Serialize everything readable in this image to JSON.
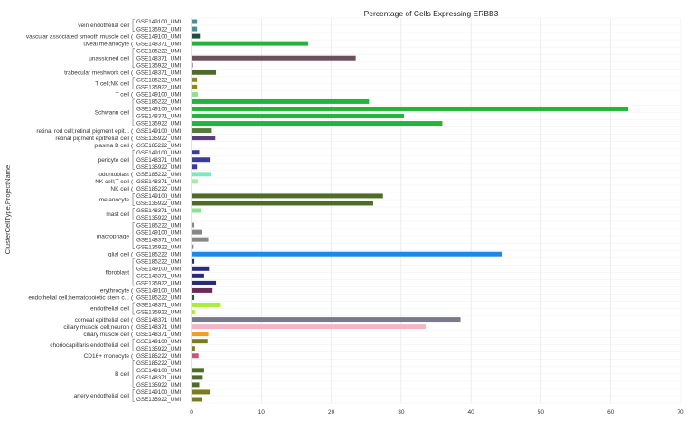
{
  "chart_data": {
    "type": "bar",
    "orientation": "horizontal",
    "title": "Percentage of Cells Expressing ERBB3",
    "ylabel": "ClusterCellType,ProjectName",
    "xlabel": "",
    "xlim": [
      0,
      70
    ],
    "xticks": [
      0,
      10,
      20,
      30,
      40,
      50,
      60,
      70
    ],
    "grid": true,
    "groups": [
      {
        "label": "vein endothelial cell",
        "rows": [
          {
            "project": "GSE149100_UMI",
            "value": 0.8,
            "color": "#4a8f8f"
          },
          {
            "project": "GSE135922_UMI",
            "value": 0.8,
            "color": "#4a8f8f"
          }
        ]
      },
      {
        "label": "vascular associated smooth muscle cell",
        "rows": [
          {
            "project": "GSE149100_UMI",
            "value": 1.2,
            "color": "#1f4e3d"
          }
        ]
      },
      {
        "label": "uveal melanocyte",
        "rows": [
          {
            "project": "GSE148371_UMI",
            "value": 16.7,
            "color": "#22b53a"
          }
        ]
      },
      {
        "label": "unassigned cell",
        "rows": [
          {
            "project": "GSE185222_UMI",
            "value": 0.0,
            "color": "#6b4f5e"
          },
          {
            "project": "GSE148371_UMI",
            "value": 23.5,
            "color": "#6b4f5e"
          },
          {
            "project": "GSE135922_UMI",
            "value": 0.2,
            "color": "#6b4f5e"
          }
        ]
      },
      {
        "label": "trabecular meshwork cell",
        "rows": [
          {
            "project": "GSE148371_UMI",
            "value": 3.5,
            "color": "#4f6b2a"
          }
        ]
      },
      {
        "label": "T cell;NK cell",
        "rows": [
          {
            "project": "GSE185222_UMI",
            "value": 0.8,
            "color": "#8a8a1e"
          },
          {
            "project": "GSE135922_UMI",
            "value": 0.8,
            "color": "#8a8a1e"
          }
        ]
      },
      {
        "label": "T cell",
        "rows": [
          {
            "project": "GSE149100_UMI",
            "value": 0.9,
            "color": "#8fe08f"
          }
        ]
      },
      {
        "label": "Schwann cell",
        "rows": [
          {
            "project": "GSE185222_UMI",
            "value": 25.4,
            "color": "#22b53a"
          },
          {
            "project": "GSE149100_UMI",
            "value": 62.5,
            "color": "#22b53a"
          },
          {
            "project": "GSE148371_UMI",
            "value": 30.4,
            "color": "#22b53a"
          },
          {
            "project": "GSE135922_UMI",
            "value": 35.9,
            "color": "#22b53a"
          }
        ]
      },
      {
        "label": "retinal rod cell;retinal pigment epit...",
        "rows": [
          {
            "project": "GSE149100_UMI",
            "value": 2.9,
            "color": "#557a3a"
          }
        ]
      },
      {
        "label": "retinal pigment epithelial cell",
        "rows": [
          {
            "project": "GSE135922_UMI",
            "value": 3.4,
            "color": "#5a3f7a"
          }
        ]
      },
      {
        "label": "plasma B cell",
        "rows": [
          {
            "project": "GSE185222_UMI",
            "value": 0.0,
            "color": "#4a4aa0"
          }
        ]
      },
      {
        "label": "pericyte cell",
        "rows": [
          {
            "project": "GSE149100_UMI",
            "value": 1.1,
            "color": "#3a3aa0"
          },
          {
            "project": "GSE148371_UMI",
            "value": 2.6,
            "color": "#3a3aa0"
          },
          {
            "project": "GSE135922_UMI",
            "value": 0.8,
            "color": "#3a3aa0"
          }
        ]
      },
      {
        "label": "odontoblast",
        "rows": [
          {
            "project": "GSE185222_UMI",
            "value": 2.8,
            "color": "#7fe8c0"
          }
        ]
      },
      {
        "label": "NK cell;T cell",
        "rows": [
          {
            "project": "GSE148371_UMI",
            "value": 0.9,
            "color": "#a8e8a8"
          }
        ]
      },
      {
        "label": "NK cell",
        "rows": [
          {
            "project": "GSE185222_UMI",
            "value": 0.0,
            "color": "#557a3a"
          }
        ]
      },
      {
        "label": "melanocyte",
        "rows": [
          {
            "project": "GSE149100_UMI",
            "value": 27.4,
            "color": "#4f6b2a"
          },
          {
            "project": "GSE135922_UMI",
            "value": 26.0,
            "color": "#4f6b2a"
          }
        ]
      },
      {
        "label": "mast cell",
        "rows": [
          {
            "project": "GSE148371_UMI",
            "value": 1.3,
            "color": "#8fe08f"
          },
          {
            "project": "GSE135922_UMI",
            "value": 0.0,
            "color": "#8fe08f"
          }
        ]
      },
      {
        "label": "macrophage",
        "rows": [
          {
            "project": "GSE185222_UMI",
            "value": 0.4,
            "color": "#888888"
          },
          {
            "project": "GSE149100_UMI",
            "value": 1.5,
            "color": "#888888"
          },
          {
            "project": "GSE148371_UMI",
            "value": 2.4,
            "color": "#888888"
          },
          {
            "project": "GSE135922_UMI",
            "value": 0.3,
            "color": "#888888"
          }
        ]
      },
      {
        "label": "glial cell",
        "rows": [
          {
            "project": "GSE185222_UMI",
            "value": 44.4,
            "color": "#1e88e5"
          }
        ]
      },
      {
        "label": "fibroblast",
        "rows": [
          {
            "project": "GSE185222_UMI",
            "value": 0.4,
            "color": "#2a2a7a"
          },
          {
            "project": "GSE149100_UMI",
            "value": 2.5,
            "color": "#2a2a7a"
          },
          {
            "project": "GSE148371_UMI",
            "value": 1.8,
            "color": "#2a2a7a"
          },
          {
            "project": "GSE135922_UMI",
            "value": 3.5,
            "color": "#2a2a7a"
          }
        ]
      },
      {
        "label": "erythrocyte",
        "rows": [
          {
            "project": "GSE149100_UMI",
            "value": 3.0,
            "color": "#6a2a5a"
          }
        ]
      },
      {
        "label": "endothelial cell;hematopoietic stem c...",
        "rows": [
          {
            "project": "GSE185222_UMI",
            "value": 0.4,
            "color": "#2a5a2a"
          }
        ]
      },
      {
        "label": "endothelial cell",
        "rows": [
          {
            "project": "GSE148371_UMI",
            "value": 4.2,
            "color": "#aaee3a"
          },
          {
            "project": "GSE135922_UMI",
            "value": 0.5,
            "color": "#aaee3a"
          }
        ]
      },
      {
        "label": "corneal epithelial cell",
        "rows": [
          {
            "project": "GSE148371_UMI",
            "value": 38.5,
            "color": "#7a7a8a"
          }
        ]
      },
      {
        "label": "ciliary muscle cell;neuron",
        "rows": [
          {
            "project": "GSE148371_UMI",
            "value": 33.5,
            "color": "#f5b5c5"
          }
        ]
      },
      {
        "label": "ciliary muscle cell",
        "rows": [
          {
            "project": "GSE148371_UMI",
            "value": 2.4,
            "color": "#f0a020"
          }
        ]
      },
      {
        "label": "choriocapillaris endothelial cell",
        "rows": [
          {
            "project": "GSE149100_UMI",
            "value": 2.3,
            "color": "#7a7a1e"
          },
          {
            "project": "GSE135922_UMI",
            "value": 0.5,
            "color": "#7a7a1e"
          }
        ]
      },
      {
        "label": "CD16+ monocyte",
        "rows": [
          {
            "project": "GSE185222_UMI",
            "value": 1.0,
            "color": "#c05a7a"
          }
        ]
      },
      {
        "label": "B cell",
        "rows": [
          {
            "project": "GSE185222_UMI",
            "value": 0.0,
            "color": "#4f6b2a"
          },
          {
            "project": "GSE149100_UMI",
            "value": 1.8,
            "color": "#4f6b2a"
          },
          {
            "project": "GSE148371_UMI",
            "value": 1.6,
            "color": "#4f6b2a"
          },
          {
            "project": "GSE135922_UMI",
            "value": 1.1,
            "color": "#4f6b2a"
          }
        ]
      },
      {
        "label": "artery endothelial cell",
        "rows": [
          {
            "project": "GSE149100_UMI",
            "value": 2.6,
            "color": "#7a7a1e"
          },
          {
            "project": "GSE135922_UMI",
            "value": 1.5,
            "color": "#7a7a1e"
          }
        ]
      }
    ]
  }
}
